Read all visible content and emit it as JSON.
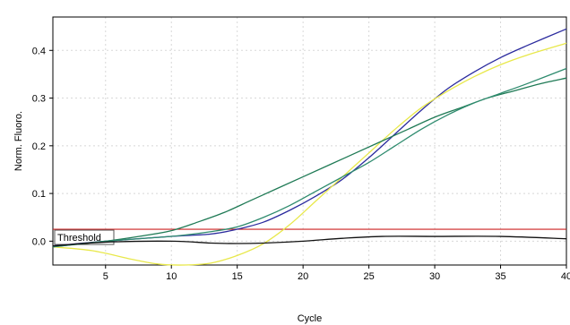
{
  "chart_data": {
    "type": "line",
    "xlabel": "Cycle",
    "ylabel": "Norm. Fluoro.",
    "xlim": [
      1,
      40
    ],
    "ylim": [
      -0.05,
      0.47
    ],
    "x_ticks": [
      5,
      10,
      15,
      20,
      25,
      30,
      35,
      40
    ],
    "y_ticks": [
      0.0,
      0.1,
      0.2,
      0.3,
      0.4
    ],
    "y_tick_labels": [
      "0.0",
      "0.1",
      "0.2",
      "0.3",
      "0.4"
    ],
    "x_tick_labels": [
      "5",
      "10",
      "15",
      "20",
      "25",
      "30",
      "35",
      "40"
    ],
    "grid": true,
    "threshold": {
      "label": "Threshold",
      "value": 0.025,
      "color": "#cc2222"
    },
    "series": [
      {
        "color": "#2b2b9e",
        "x": [
          1,
          5,
          10,
          13,
          15,
          17,
          19,
          21,
          23,
          25,
          27,
          29,
          31,
          33,
          35,
          37,
          40
        ],
        "y": [
          -0.01,
          0.0,
          0.01,
          0.015,
          0.025,
          0.04,
          0.065,
          0.095,
          0.13,
          0.175,
          0.225,
          0.275,
          0.32,
          0.355,
          0.385,
          0.41,
          0.445
        ]
      },
      {
        "color": "#e8e84a",
        "x": [
          1,
          4,
          7,
          9,
          11,
          13,
          15,
          17,
          19,
          21,
          23,
          25,
          27,
          29,
          31,
          33,
          35,
          37,
          40
        ],
        "y": [
          -0.012,
          -0.02,
          -0.038,
          -0.048,
          -0.05,
          -0.046,
          -0.03,
          -0.005,
          0.035,
          0.085,
          0.135,
          0.185,
          0.235,
          0.28,
          0.315,
          0.345,
          0.37,
          0.39,
          0.415
        ]
      },
      {
        "color": "#1f7a55",
        "x": [
          1,
          5,
          8,
          10,
          12,
          14,
          16,
          18,
          20,
          22,
          24,
          26,
          28,
          30,
          32,
          34,
          36,
          38,
          40
        ],
        "y": [
          -0.012,
          0.0,
          0.012,
          0.022,
          0.04,
          0.06,
          0.085,
          0.11,
          0.135,
          0.16,
          0.185,
          0.21,
          0.235,
          0.26,
          0.28,
          0.3,
          0.315,
          0.33,
          0.342
        ]
      },
      {
        "color": "#2e8b6e",
        "x": [
          1,
          5,
          10,
          13,
          15,
          17,
          19,
          21,
          23,
          25,
          27,
          29,
          31,
          33,
          35,
          37,
          40
        ],
        "y": [
          -0.012,
          0.0,
          0.01,
          0.02,
          0.03,
          0.05,
          0.075,
          0.105,
          0.135,
          0.165,
          0.2,
          0.235,
          0.265,
          0.29,
          0.31,
          0.33,
          0.362
        ]
      },
      {
        "color": "#111111",
        "x": [
          1,
          5,
          10,
          13,
          15,
          17,
          20,
          23,
          26,
          30,
          35,
          40
        ],
        "y": [
          -0.01,
          -0.002,
          0.0,
          -0.004,
          -0.005,
          -0.004,
          0.0,
          0.006,
          0.01,
          0.01,
          0.01,
          0.005
        ]
      }
    ]
  }
}
